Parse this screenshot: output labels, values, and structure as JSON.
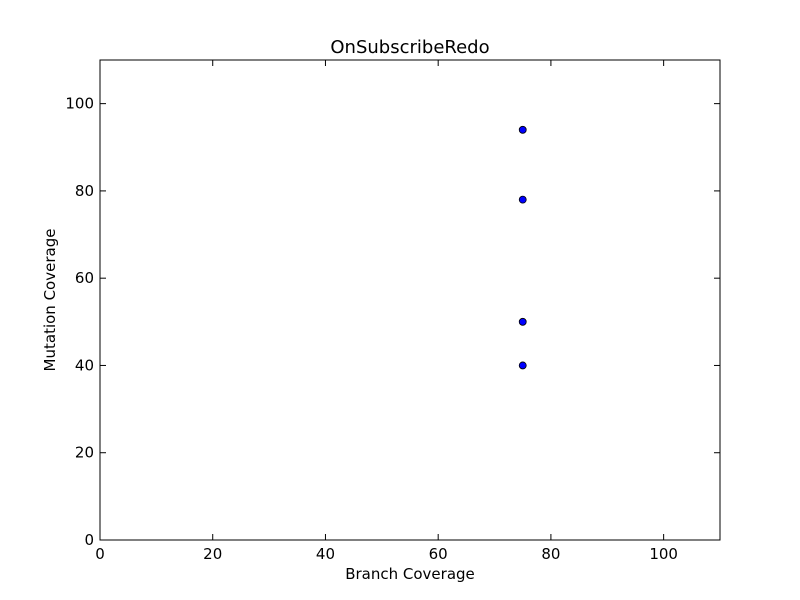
{
  "chart_data": {
    "type": "scatter",
    "title": "OnSubscribeRedo",
    "xlabel": "Branch Coverage",
    "ylabel": "Mutation Coverage",
    "xlim": [
      0,
      110
    ],
    "ylim": [
      0,
      110
    ],
    "xticks": [
      0,
      20,
      40,
      60,
      80,
      100
    ],
    "yticks": [
      0,
      20,
      40,
      60,
      80,
      100
    ],
    "grid": false,
    "series": [
      {
        "color": "#0000ff",
        "points": [
          {
            "x": 75,
            "y": 94
          },
          {
            "x": 75,
            "y": 78
          },
          {
            "x": 75,
            "y": 50
          },
          {
            "x": 75,
            "y": 40
          }
        ]
      }
    ]
  }
}
